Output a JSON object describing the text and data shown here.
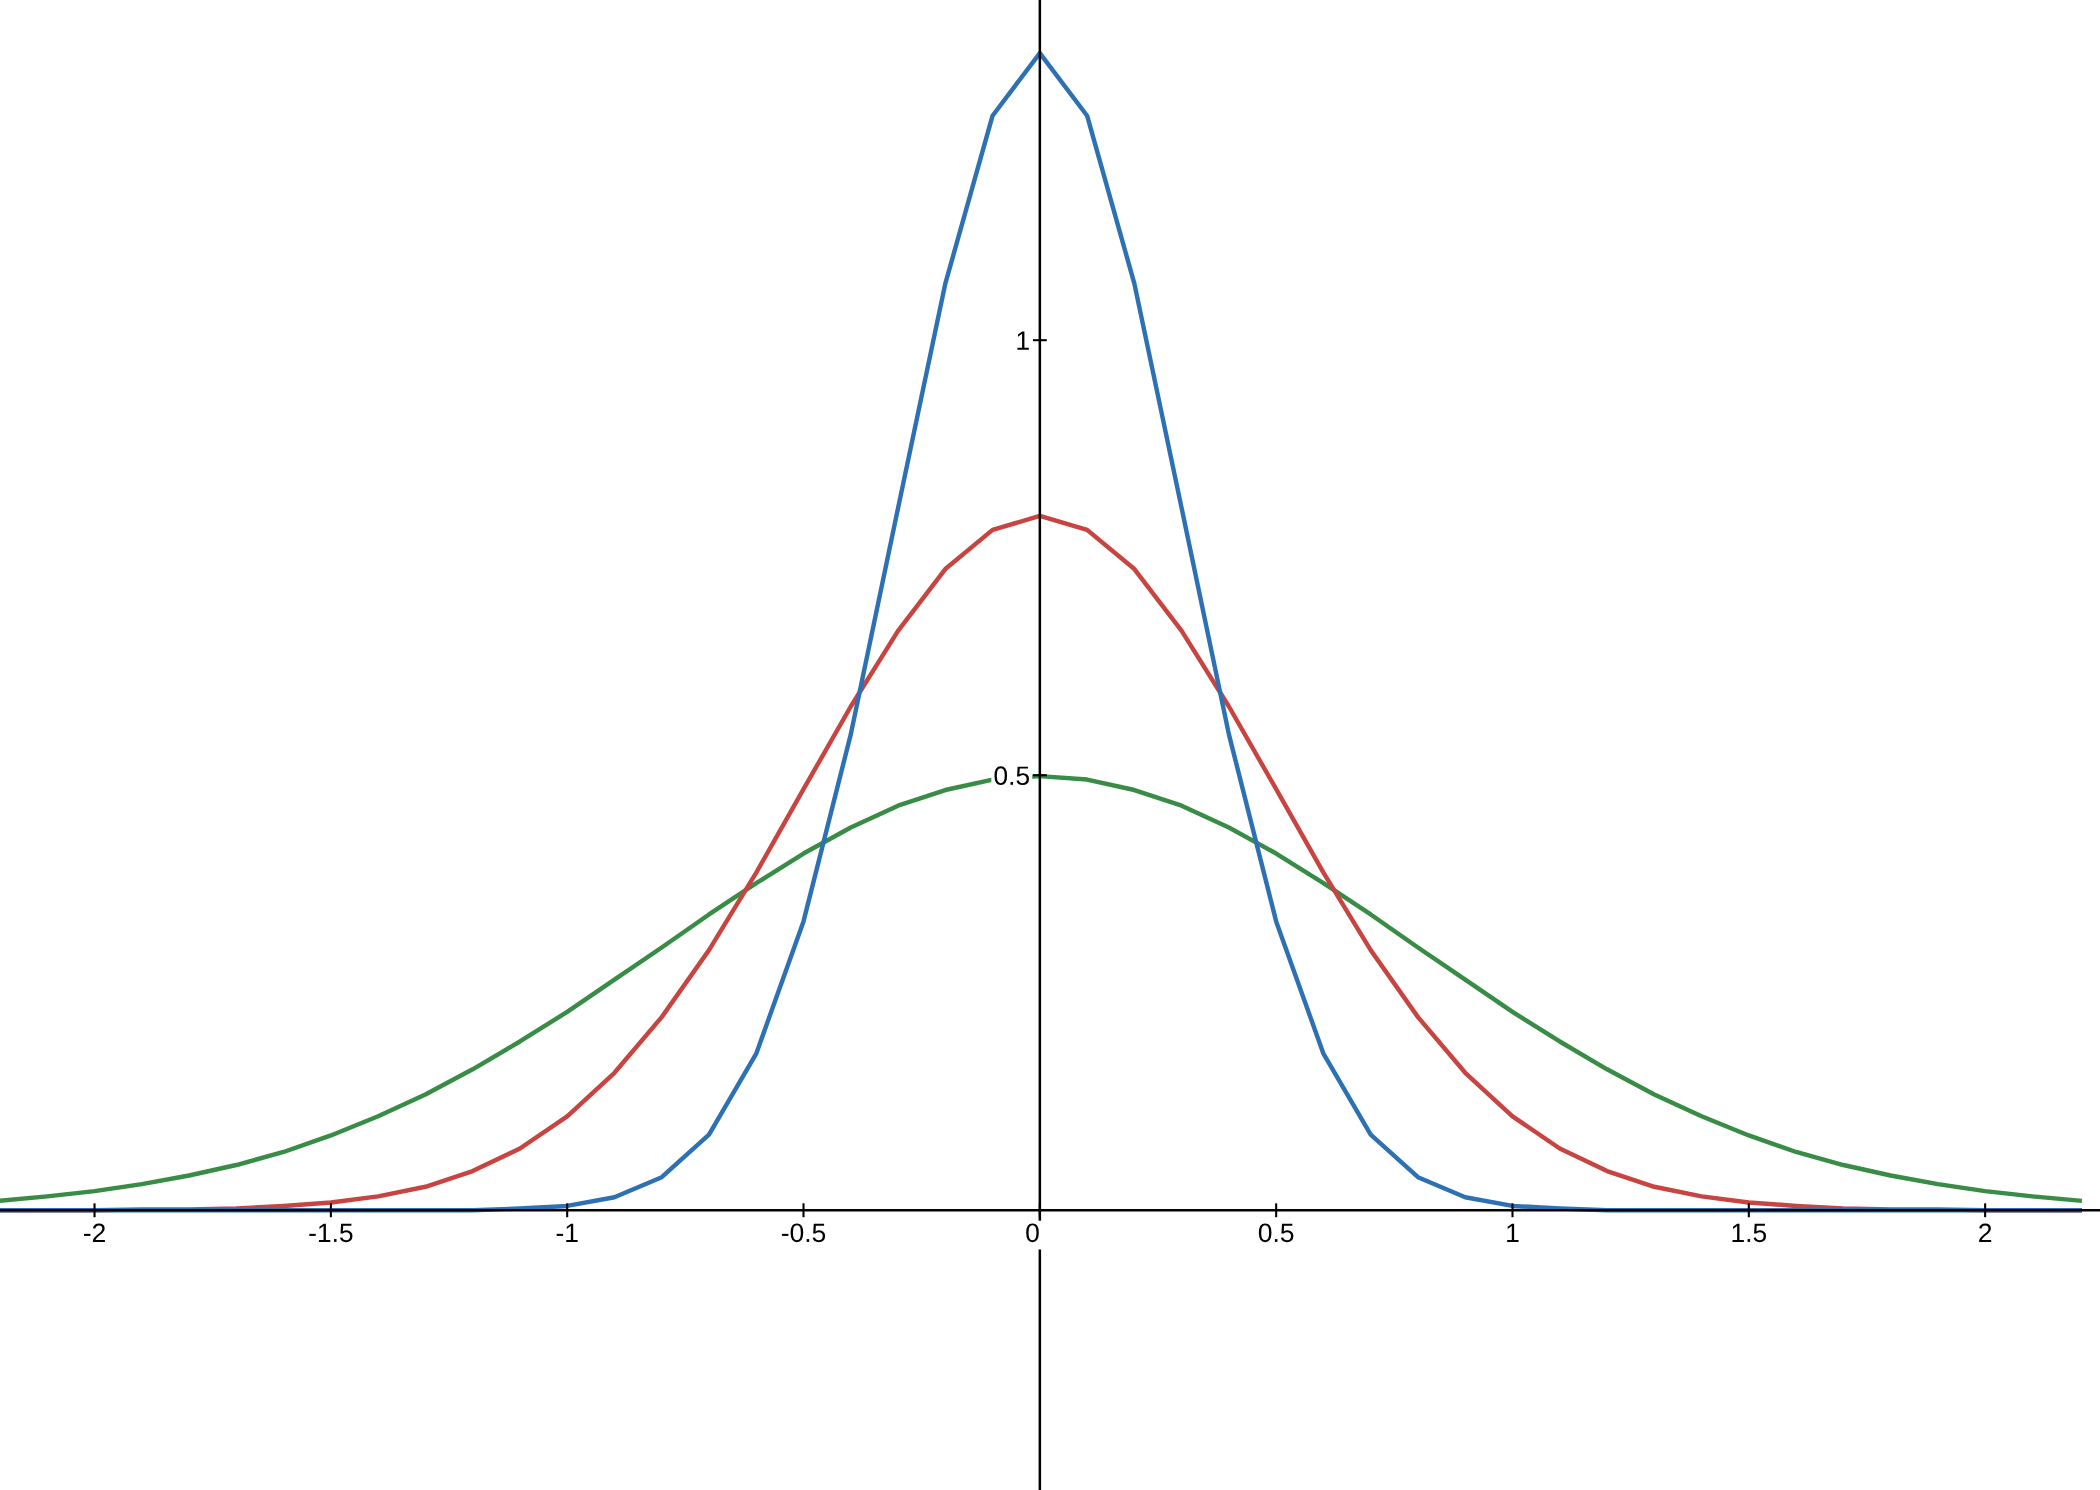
{
  "chart_data": {
    "type": "line",
    "x": [
      -2.2,
      -2.1,
      -2.0,
      -1.9,
      -1.8,
      -1.7,
      -1.6,
      -1.5,
      -1.4,
      -1.3,
      -1.2,
      -1.1,
      -1.0,
      -0.9,
      -0.8,
      -0.7,
      -0.6,
      -0.5,
      -0.4,
      -0.3,
      -0.2,
      -0.1,
      0.0,
      0.1,
      0.2,
      0.3,
      0.4,
      0.5,
      0.6,
      0.7,
      0.8,
      0.9,
      1.0,
      1.1,
      1.2,
      1.3,
      1.4,
      1.5,
      1.6,
      1.7,
      1.8,
      1.9,
      2.0,
      2.1,
      2.2
    ],
    "series": [
      {
        "color": "#388c46",
        "values": [
          0.011,
          0.016,
          0.022,
          0.03,
          0.04,
          0.052,
          0.067,
          0.086,
          0.108,
          0.133,
          0.162,
          0.194,
          0.228,
          0.265,
          0.302,
          0.34,
          0.376,
          0.41,
          0.44,
          0.465,
          0.483,
          0.495,
          0.499,
          0.495,
          0.483,
          0.465,
          0.44,
          0.41,
          0.376,
          0.34,
          0.302,
          0.265,
          0.228,
          0.194,
          0.162,
          0.133,
          0.108,
          0.086,
          0.067,
          0.052,
          0.04,
          0.03,
          0.022,
          0.016,
          0.011
        ]
      },
      {
        "color": "#c74440",
        "values": [
          0,
          0,
          0,
          0.001,
          0.001,
          0.002,
          0.005,
          0.009,
          0.016,
          0.027,
          0.045,
          0.071,
          0.108,
          0.158,
          0.222,
          0.299,
          0.388,
          0.484,
          0.579,
          0.666,
          0.737,
          0.782,
          0.798,
          0.782,
          0.737,
          0.666,
          0.579,
          0.484,
          0.388,
          0.299,
          0.222,
          0.158,
          0.108,
          0.071,
          0.045,
          0.027,
          0.016,
          0.009,
          0.005,
          0.002,
          0.001,
          0.001,
          0,
          0,
          0
        ]
      },
      {
        "color": "#2d70b3",
        "values": [
          0,
          0,
          0,
          0,
          0,
          0,
          0,
          0,
          0,
          0,
          0,
          0.002,
          0.005,
          0.015,
          0.038,
          0.087,
          0.18,
          0.332,
          0.547,
          0.807,
          1.065,
          1.258,
          1.33,
          1.258,
          1.065,
          0.807,
          0.547,
          0.332,
          0.18,
          0.087,
          0.038,
          0.015,
          0.005,
          0.002,
          0,
          0,
          0,
          0,
          0,
          0,
          0,
          0,
          0,
          0,
          0
        ]
      }
    ],
    "xlim": [
      -2.2,
      2.243
    ],
    "ylim": [
      -0.3215,
      1.391
    ],
    "xticks": [
      {
        "value": -2,
        "label": "-2"
      },
      {
        "value": -1.5,
        "label": "-1.5"
      },
      {
        "value": -1,
        "label": "-1"
      },
      {
        "value": -0.5,
        "label": "-0.5"
      },
      0,
      0.5,
      1,
      1.5,
      2
    ],
    "yticks": [
      0.5,
      1
    ],
    "marker": "none",
    "line_style": "solid"
  }
}
